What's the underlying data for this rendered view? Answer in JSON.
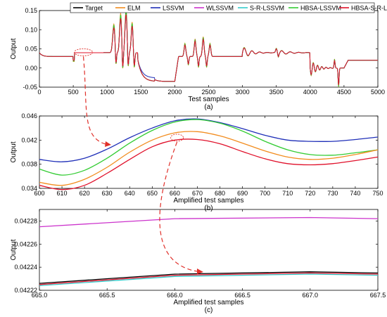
{
  "legend": [
    "Target",
    "ELM",
    "LSSVM",
    "WLSSVM",
    "S-R-LSSVM",
    "HBSA-LSSVM",
    "HBSA-S-R-LSSVM"
  ],
  "colors": {
    "Target": "#000000",
    "ELM": "#f28c1e",
    "LSSVM": "#1f2fb8",
    "WLSSVM": "#cc33cc",
    "S-R-LSSVM": "#33cccc",
    "HBSA-LSSVM": "#33cc33",
    "HBSA-S-R-LSSVM": "#e0102a",
    "annotation": "#e0302a"
  },
  "chart_data": [
    {
      "type": "line",
      "panel_label": "(a)",
      "xlabel": "Test samples",
      "ylabel": "Output",
      "xlim": [
        0,
        5000
      ],
      "ylim": [
        -0.05,
        0.15
      ],
      "xticks": [
        0,
        500,
        1000,
        1500,
        2000,
        2500,
        3000,
        3500,
        4000,
        4500,
        5000
      ],
      "yticks": [
        -0.05,
        0,
        0.05,
        0.1,
        0.15
      ],
      "ytick_labels": [
        "-0.05",
        "0.00",
        "0.05",
        "0.10",
        "0.15"
      ],
      "segments": [
        {
          "x": [
            0,
            500
          ],
          "level": 0.03
        },
        {
          "x": [
            500,
            2000
          ],
          "level": 0.04
        },
        {
          "x": [
            2000,
            3000
          ],
          "level": -0.035
        },
        {
          "x": [
            3000,
            4000
          ],
          "level": 0.04
        },
        {
          "x": [
            4000,
            5000
          ],
          "level": 0.0
        },
        {
          "x": [
            4500,
            5000
          ],
          "level": 0.02
        }
      ],
      "series": [
        {
          "name": "Target",
          "values_note": ""
        },
        {
          "name": "ELM"
        },
        {
          "name": "LSSVM"
        },
        {
          "name": "WLSSVM"
        },
        {
          "name": "S-R-LSSVM"
        },
        {
          "name": "HBSA-LSSVM"
        },
        {
          "name": "HBSA-S-R-LSSVM"
        }
      ],
      "peaks": [
        {
          "x": 1100,
          "y": 0.105
        },
        {
          "x": 1200,
          "y": 0.13
        },
        {
          "x": 1280,
          "y": 0.14
        },
        {
          "x": 1370,
          "y": 0.11
        }
      ]
    },
    {
      "type": "line",
      "panel_label": "(b)",
      "xlabel": "Amplified test samples",
      "ylabel": "Output",
      "xlim": [
        600,
        750
      ],
      "ylim": [
        0.034,
        0.046
      ],
      "xticks": [
        600,
        610,
        620,
        630,
        640,
        650,
        660,
        670,
        680,
        690,
        700,
        710,
        720,
        730,
        740,
        750
      ],
      "yticks": [
        0.034,
        0.038,
        0.042,
        0.046
      ],
      "ytick_labels": [
        "0.034",
        "0.038",
        "0.042",
        "0.046"
      ],
      "x": [
        600,
        610,
        620,
        630,
        640,
        650,
        660,
        670,
        680,
        690,
        700,
        710,
        720,
        730,
        740,
        750
      ],
      "series": [
        {
          "name": "LSSVM",
          "values": [
            0.0388,
            0.0384,
            0.039,
            0.0405,
            0.0424,
            0.044,
            0.0452,
            0.0455,
            0.0449,
            0.0439,
            0.0428,
            0.042,
            0.0418,
            0.0418,
            0.0421,
            0.0425
          ]
        },
        {
          "name": "HBSA-LSSVM",
          "values": [
            0.0372,
            0.0362,
            0.037,
            0.039,
            0.0415,
            0.0436,
            0.045,
            0.0454,
            0.0448,
            0.0435,
            0.0418,
            0.0404,
            0.0396,
            0.0395,
            0.0399,
            0.0404
          ]
        },
        {
          "name": "ELM",
          "values": [
            0.035,
            0.0345,
            0.0355,
            0.0375,
            0.04,
            0.042,
            0.0432,
            0.0434,
            0.0427,
            0.0415,
            0.0402,
            0.0392,
            0.0388,
            0.039,
            0.0396,
            0.0404
          ]
        },
        {
          "name": "HBSA-S-R-LSSVM",
          "values": [
            0.0345,
            0.0338,
            0.0345,
            0.0365,
            0.0388,
            0.0409,
            0.042,
            0.0421,
            0.0414,
            0.0401,
            0.0389,
            0.0381,
            0.0379,
            0.0381,
            0.0386,
            0.0392
          ]
        }
      ]
    },
    {
      "type": "line",
      "panel_label": "(c)",
      "xlabel": "Amplified test samples",
      "ylabel": "Output",
      "xlim": [
        665.0,
        667.5
      ],
      "ylim": [
        0.04222,
        0.04229
      ],
      "xticks": [
        665.0,
        665.5,
        666.0,
        666.5,
        667.0,
        667.5
      ],
      "xtick_labels": [
        "665.0",
        "665.5",
        "666.0",
        "666.5",
        "667.0",
        "667.5"
      ],
      "yticks": [
        0.04222,
        0.04224,
        0.04226,
        0.04228
      ],
      "ytick_labels": [
        "0.04222",
        "0.04224",
        "0.04226",
        "0.04228"
      ],
      "x": [
        665.0,
        666.0,
        667.0,
        667.5
      ],
      "series": [
        {
          "name": "WLSSVM",
          "values": [
            0.042275,
            0.042282,
            0.042283,
            0.042282
          ]
        },
        {
          "name": "Target",
          "values": [
            0.042226,
            0.042234,
            0.042236,
            0.042235
          ]
        },
        {
          "name": "HBSA-S-R-LSSVM",
          "values": [
            0.042225,
            0.042233,
            0.042235,
            0.042234
          ]
        },
        {
          "name": "S-R-LSSVM",
          "values": [
            0.042224,
            0.042232,
            0.042234,
            0.042233
          ]
        }
      ]
    }
  ]
}
